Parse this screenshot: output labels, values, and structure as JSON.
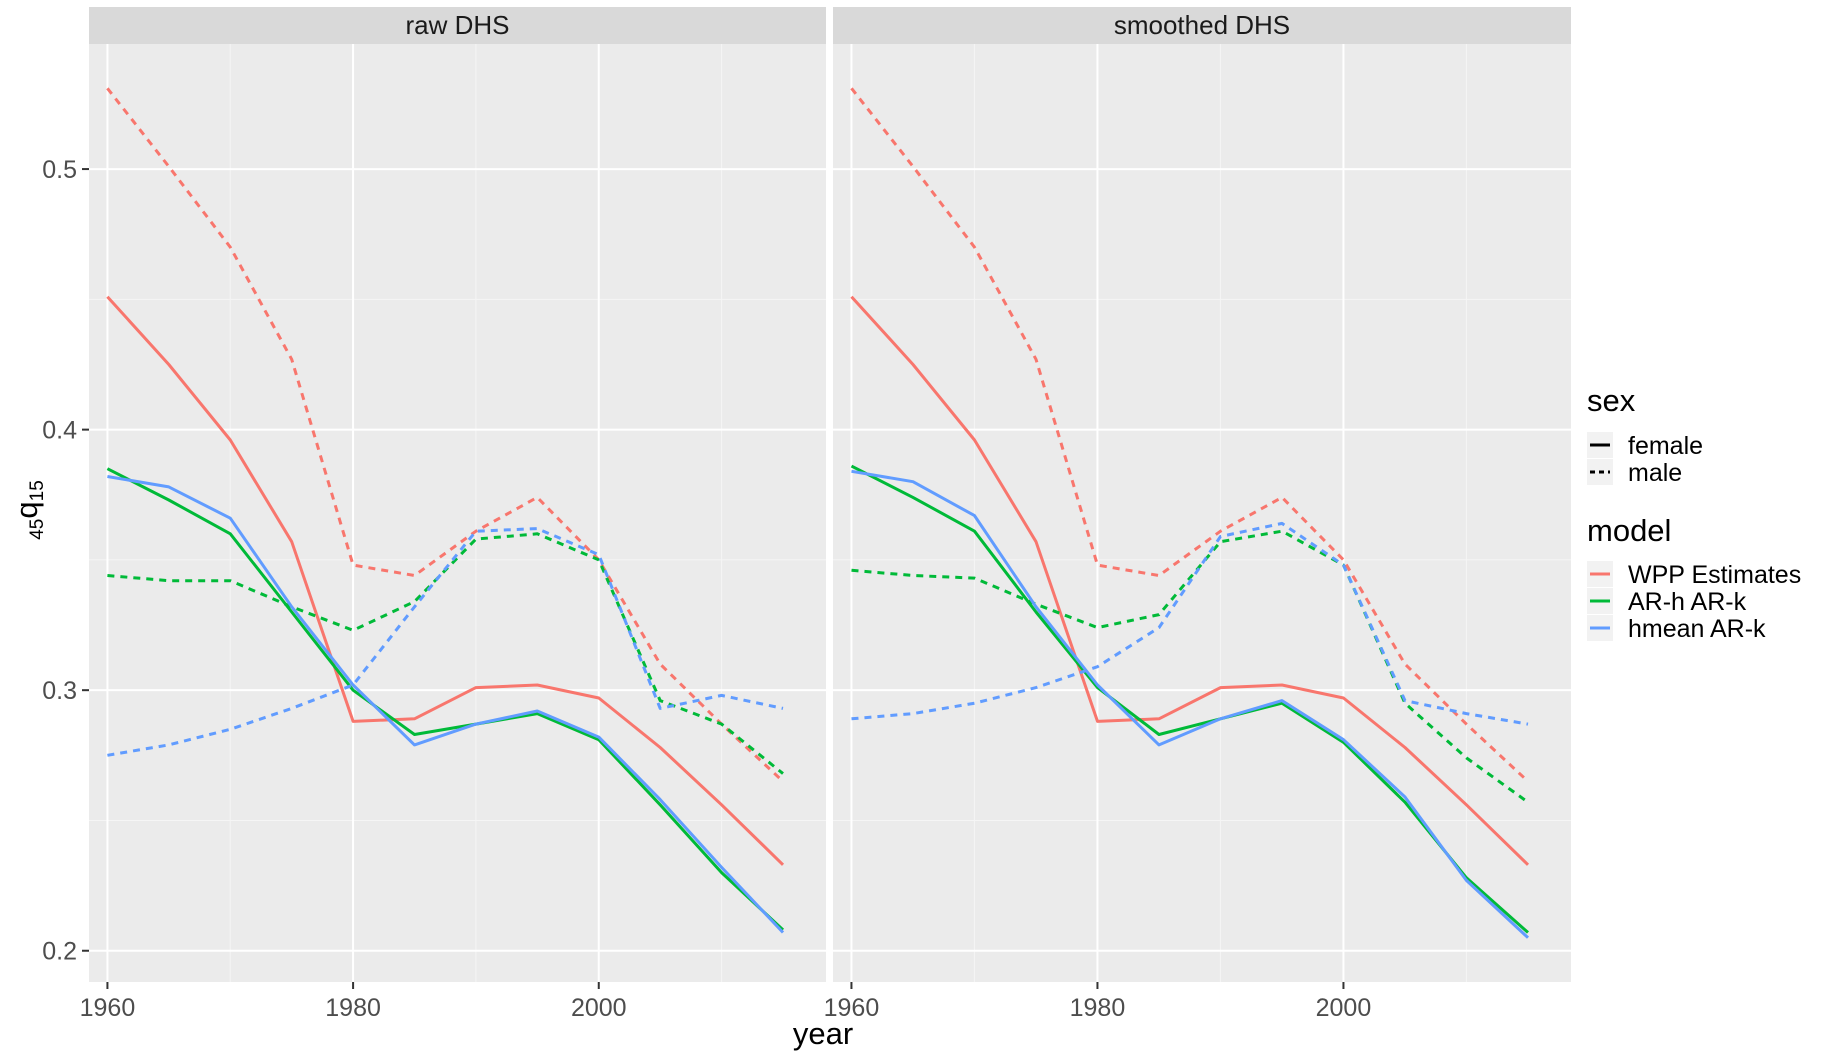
{
  "chart_data": {
    "type": "line",
    "xlabel": "year",
    "ylabel": "45q15",
    "ylabel_parts": {
      "pre": "45",
      "base": "q",
      "sub": "15"
    },
    "xlim": [
      1958.5,
      2018.5
    ],
    "ylim": [
      0.188,
      0.548
    ],
    "xticks": [
      1960,
      1980,
      2000
    ],
    "xtick_labels": [
      "1960",
      "1980",
      "2000"
    ],
    "yticks": [
      0.2,
      0.3,
      0.4,
      0.5
    ],
    "ytick_labels": [
      "0.2",
      "0.3",
      "0.4",
      "0.5"
    ],
    "grid": true,
    "legend_position": "right",
    "legend": {
      "sex": {
        "title": "sex",
        "items": [
          {
            "label": "female",
            "linetype": "solid"
          },
          {
            "label": "male",
            "linetype": "dashed"
          }
        ]
      },
      "model": {
        "title": "model",
        "items": [
          {
            "label": "WPP Estimates",
            "color": "#F8766D"
          },
          {
            "label": "AR-h AR-k",
            "color": "#00BA38"
          },
          {
            "label": "hmean AR-k",
            "color": "#619CFF"
          }
        ]
      }
    },
    "x": [
      1960,
      1965,
      1970,
      1975,
      1980,
      1985,
      1990,
      1995,
      2000,
      2005,
      2010,
      2015
    ],
    "panels": [
      {
        "title": "raw DHS",
        "series": [
          {
            "model": "WPP Estimates",
            "sex": "female",
            "color": "#F8766D",
            "dashed": false,
            "values": [
              0.451,
              0.425,
              0.396,
              0.357,
              0.288,
              0.289,
              0.301,
              0.302,
              0.297,
              0.278,
              0.256,
              0.233
            ]
          },
          {
            "model": "WPP Estimates",
            "sex": "male",
            "color": "#F8766D",
            "dashed": true,
            "values": [
              0.531,
              0.501,
              0.47,
              0.427,
              0.348,
              0.344,
              0.361,
              0.374,
              0.35,
              0.31,
              0.287,
              0.265
            ]
          },
          {
            "model": "AR-h AR-k",
            "sex": "female",
            "color": "#00BA38",
            "dashed": false,
            "values": [
              0.385,
              0.373,
              0.36,
              0.33,
              0.3,
              0.283,
              0.287,
              0.291,
              0.281,
              0.256,
              0.23,
              0.208
            ]
          },
          {
            "model": "AR-h AR-k",
            "sex": "male",
            "color": "#00BA38",
            "dashed": true,
            "values": [
              0.344,
              0.342,
              0.342,
              0.332,
              0.323,
              0.334,
              0.358,
              0.36,
              0.35,
              0.296,
              0.287,
              0.268
            ]
          },
          {
            "model": "hmean AR-k",
            "sex": "female",
            "color": "#619CFF",
            "dashed": false,
            "values": [
              0.382,
              0.378,
              0.366,
              0.332,
              0.302,
              0.279,
              0.287,
              0.292,
              0.282,
              0.258,
              0.232,
              0.207
            ]
          },
          {
            "model": "hmean AR-k",
            "sex": "male",
            "color": "#619CFF",
            "dashed": true,
            "values": [
              0.275,
              0.279,
              0.285,
              0.293,
              0.302,
              0.332,
              0.361,
              0.362,
              0.352,
              0.293,
              0.298,
              0.293
            ]
          }
        ]
      },
      {
        "title": "smoothed DHS",
        "series": [
          {
            "model": "WPP Estimates",
            "sex": "female",
            "color": "#F8766D",
            "dashed": false,
            "values": [
              0.451,
              0.425,
              0.396,
              0.357,
              0.288,
              0.289,
              0.301,
              0.302,
              0.297,
              0.278,
              0.256,
              0.233
            ]
          },
          {
            "model": "WPP Estimates",
            "sex": "male",
            "color": "#F8766D",
            "dashed": true,
            "values": [
              0.531,
              0.501,
              0.47,
              0.427,
              0.348,
              0.344,
              0.361,
              0.374,
              0.35,
              0.31,
              0.287,
              0.265
            ]
          },
          {
            "model": "AR-h AR-k",
            "sex": "female",
            "color": "#00BA38",
            "dashed": false,
            "values": [
              0.386,
              0.374,
              0.361,
              0.33,
              0.301,
              0.283,
              0.289,
              0.295,
              0.28,
              0.257,
              0.228,
              0.207
            ]
          },
          {
            "model": "AR-h AR-k",
            "sex": "male",
            "color": "#00BA38",
            "dashed": true,
            "values": [
              0.346,
              0.344,
              0.343,
              0.333,
              0.324,
              0.329,
              0.357,
              0.361,
              0.348,
              0.295,
              0.274,
              0.257
            ]
          },
          {
            "model": "hmean AR-k",
            "sex": "female",
            "color": "#619CFF",
            "dashed": false,
            "values": [
              0.384,
              0.38,
              0.367,
              0.332,
              0.302,
              0.279,
              0.289,
              0.296,
              0.281,
              0.259,
              0.227,
              0.205
            ]
          },
          {
            "model": "hmean AR-k",
            "sex": "male",
            "color": "#619CFF",
            "dashed": true,
            "values": [
              0.289,
              0.291,
              0.295,
              0.301,
              0.309,
              0.324,
              0.359,
              0.364,
              0.348,
              0.296,
              0.291,
              0.287
            ]
          }
        ]
      }
    ]
  }
}
